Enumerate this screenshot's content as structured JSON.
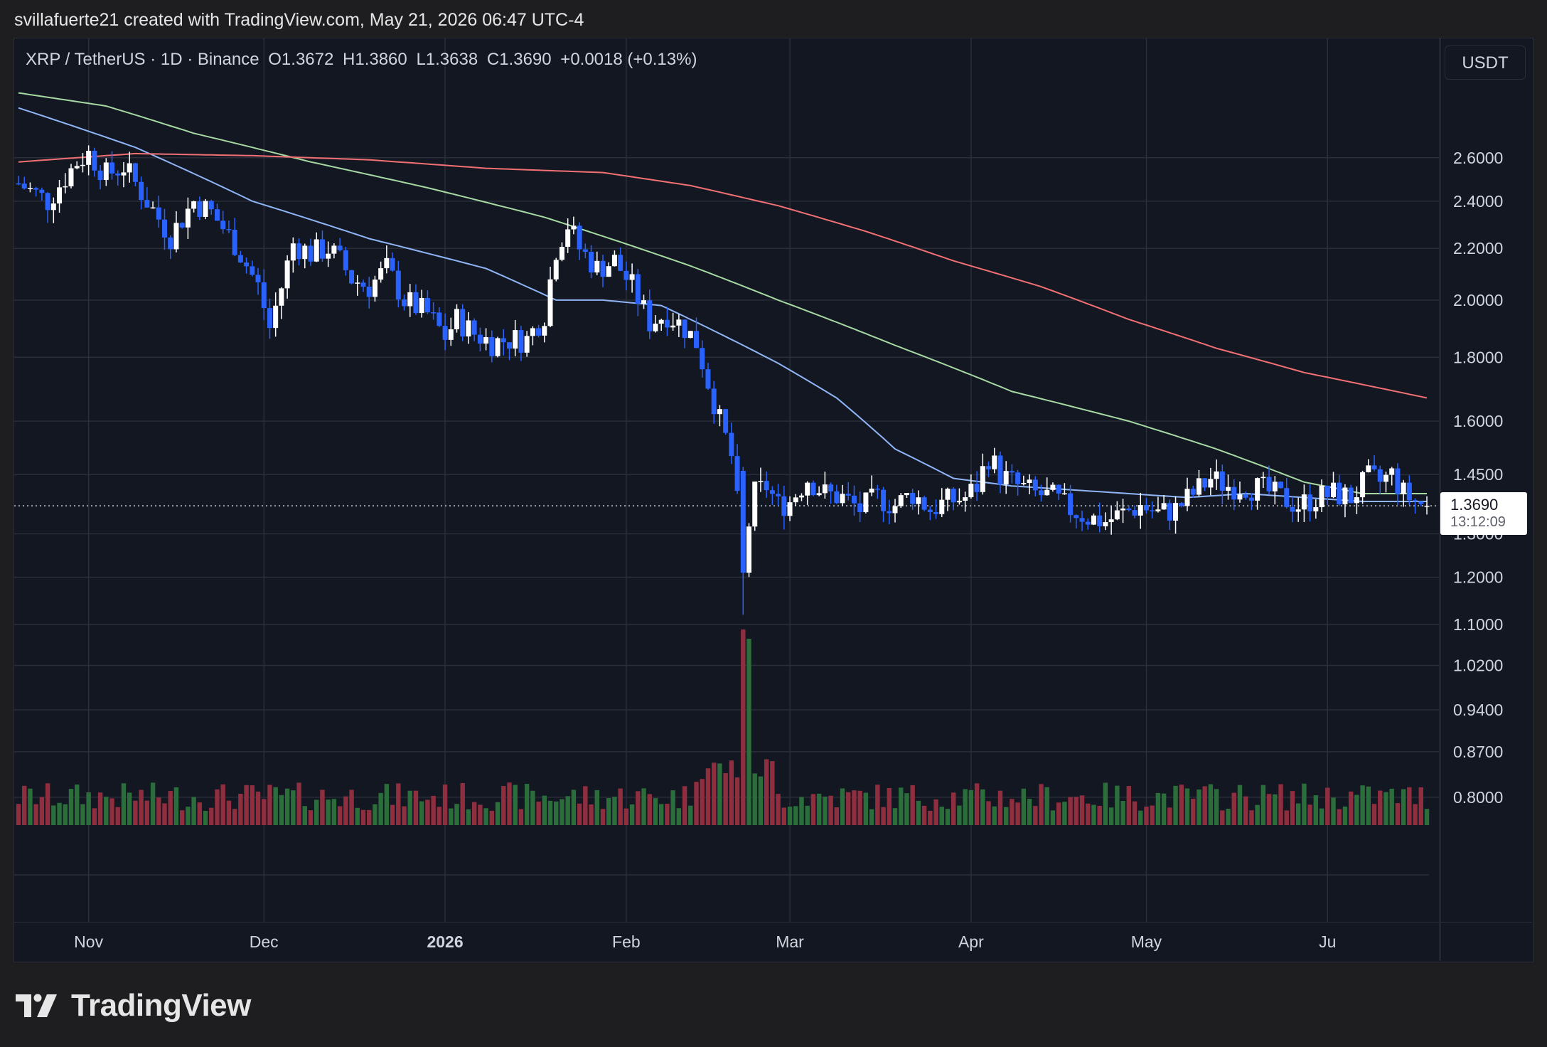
{
  "header": {
    "attribution": "svillafuerte21 created with TradingView.com, May 21, 2026 06:47 UTC-4"
  },
  "legend": {
    "symbol": "XRP / TetherUS · 1D · Binance",
    "open": "O1.3672",
    "high": "H1.3860",
    "low": "L1.3638",
    "close": "C1.3690",
    "change": "+0.0018 (+0.13%)"
  },
  "currency_button": "USDT",
  "last_price": {
    "price": "1.3690",
    "countdown": "13:12:09"
  },
  "brand": {
    "name": "TradingView",
    "logo_icon": "tradingview-logo-icon"
  },
  "chart_data": {
    "type": "candlestick",
    "scale": "log",
    "ylim": [
      0.76,
      3.05
    ],
    "y_ticks": [
      "2.6000",
      "2.4000",
      "2.2000",
      "2.0000",
      "1.8000",
      "1.6000",
      "1.4500",
      "1.3000",
      "1.2000",
      "1.1000",
      "1.0200",
      "0.9400",
      "0.8700",
      "0.8000"
    ],
    "x_ticks": [
      "Nov",
      "Dec",
      "2026",
      "Feb",
      "Mar",
      "Apr",
      "May",
      "Ju"
    ],
    "grid": true,
    "colors": {
      "up_candle": "#ffffff",
      "down_candle": "#2962ff",
      "ma_fast": "#8fb5f7",
      "ma_mid": "#a7d9a3",
      "ma_slow": "#f27074",
      "volume_up": "#2b6e3c",
      "volume_down": "#8f2e3f"
    },
    "price_path": [
      [
        0,
        2.48
      ],
      [
        5,
        2.4
      ],
      [
        10,
        2.58
      ],
      [
        12,
        2.62
      ],
      [
        15,
        2.52
      ],
      [
        18,
        2.56
      ],
      [
        22,
        2.4
      ],
      [
        26,
        2.25
      ],
      [
        30,
        2.4
      ],
      [
        33,
        2.35
      ],
      [
        37,
        2.22
      ],
      [
        41,
        2.05
      ],
      [
        43,
        1.9
      ],
      [
        45,
        2.05
      ],
      [
        47,
        2.22
      ],
      [
        50,
        2.18
      ],
      [
        53,
        2.2
      ],
      [
        55,
        2.15
      ],
      [
        57,
        2.08
      ],
      [
        60,
        2.05
      ],
      [
        63,
        2.12
      ],
      [
        66,
        2.0
      ],
      [
        70,
        1.95
      ],
      [
        73,
        1.87
      ],
      [
        75,
        1.93
      ],
      [
        78,
        1.88
      ],
      [
        81,
        1.85
      ],
      [
        84,
        1.86
      ],
      [
        87,
        1.86
      ],
      [
        90,
        1.95
      ],
      [
        92,
        2.2
      ],
      [
        94,
        2.3
      ],
      [
        96,
        2.2
      ],
      [
        99,
        2.12
      ],
      [
        102,
        2.15
      ],
      [
        105,
        2.05
      ],
      [
        108,
        1.92
      ],
      [
        111,
        1.95
      ],
      [
        114,
        1.9
      ],
      [
        116,
        1.85
      ],
      [
        118,
        1.72
      ],
      [
        120,
        1.6
      ],
      [
        122,
        1.5
      ],
      [
        124,
        1.25
      ],
      [
        126,
        1.4
      ],
      [
        128,
        1.42
      ],
      [
        130,
        1.37
      ],
      [
        132,
        1.38
      ],
      [
        135,
        1.44
      ],
      [
        138,
        1.4
      ],
      [
        141,
        1.39
      ],
      [
        144,
        1.36
      ],
      [
        147,
        1.39
      ],
      [
        150,
        1.37
      ],
      [
        153,
        1.4
      ],
      [
        156,
        1.36
      ],
      [
        159,
        1.38
      ],
      [
        162,
        1.39
      ],
      [
        164,
        1.42
      ],
      [
        166,
        1.5
      ],
      [
        168,
        1.45
      ],
      [
        171,
        1.42
      ],
      [
        174,
        1.4
      ],
      [
        177,
        1.39
      ],
      [
        180,
        1.36
      ],
      [
        183,
        1.34
      ],
      [
        186,
        1.33
      ],
      [
        189,
        1.35
      ],
      [
        192,
        1.37
      ],
      [
        195,
        1.35
      ],
      [
        198,
        1.36
      ],
      [
        201,
        1.4
      ],
      [
        204,
        1.44
      ],
      [
        207,
        1.42
      ],
      [
        210,
        1.42
      ],
      [
        213,
        1.41
      ],
      [
        216,
        1.39
      ],
      [
        219,
        1.37
      ],
      [
        222,
        1.39
      ],
      [
        225,
        1.4
      ],
      [
        228,
        1.39
      ],
      [
        231,
        1.44
      ],
      [
        233,
        1.43
      ],
      [
        235,
        1.45
      ],
      [
        237,
        1.4
      ],
      [
        239,
        1.38
      ],
      [
        241,
        1.369
      ]
    ],
    "ma_fast_path": [
      [
        0,
        2.85
      ],
      [
        20,
        2.65
      ],
      [
        40,
        2.4
      ],
      [
        60,
        2.24
      ],
      [
        80,
        2.12
      ],
      [
        92,
        2.0
      ],
      [
        100,
        2.0
      ],
      [
        110,
        1.98
      ],
      [
        120,
        1.88
      ],
      [
        130,
        1.78
      ],
      [
        140,
        1.67
      ],
      [
        150,
        1.52
      ],
      [
        160,
        1.44
      ],
      [
        170,
        1.42
      ],
      [
        180,
        1.41
      ],
      [
        190,
        1.4
      ],
      [
        200,
        1.39
      ],
      [
        210,
        1.4
      ],
      [
        220,
        1.39
      ],
      [
        230,
        1.38
      ],
      [
        241,
        1.38
      ]
    ],
    "ma_mid_path": [
      [
        0,
        2.93
      ],
      [
        15,
        2.86
      ],
      [
        30,
        2.72
      ],
      [
        50,
        2.58
      ],
      [
        70,
        2.46
      ],
      [
        90,
        2.33
      ],
      [
        100,
        2.25
      ],
      [
        115,
        2.13
      ],
      [
        130,
        2.0
      ],
      [
        150,
        1.84
      ],
      [
        170,
        1.69
      ],
      [
        190,
        1.6
      ],
      [
        205,
        1.52
      ],
      [
        220,
        1.43
      ],
      [
        230,
        1.4
      ],
      [
        241,
        1.4
      ]
    ],
    "ma_slow_path": [
      [
        0,
        2.58
      ],
      [
        20,
        2.62
      ],
      [
        40,
        2.61
      ],
      [
        60,
        2.59
      ],
      [
        80,
        2.55
      ],
      [
        100,
        2.53
      ],
      [
        115,
        2.47
      ],
      [
        130,
        2.38
      ],
      [
        145,
        2.27
      ],
      [
        160,
        2.15
      ],
      [
        175,
        2.05
      ],
      [
        190,
        1.93
      ],
      [
        205,
        1.83
      ],
      [
        220,
        1.75
      ],
      [
        241,
        1.67
      ]
    ],
    "volume_spike_day": 124
  }
}
